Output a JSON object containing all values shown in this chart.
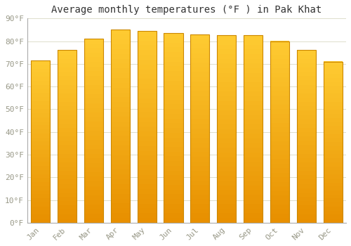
{
  "title": "Average monthly temperatures (°F ) in Pak Khat",
  "months": [
    "Jan",
    "Feb",
    "Mar",
    "Apr",
    "May",
    "Jun",
    "Jul",
    "Aug",
    "Sep",
    "Oct",
    "Nov",
    "Dec"
  ],
  "values": [
    71.5,
    76.0,
    81.0,
    85.0,
    84.5,
    83.5,
    83.0,
    82.5,
    82.5,
    80.0,
    76.0,
    71.0
  ],
  "bar_color_main": "#FFBB22",
  "bar_color_edge": "#CC8800",
  "bar_color_left_shadow": "#E89000",
  "bar_color_right_shadow": "#FFCC44",
  "ylim": [
    0,
    90
  ],
  "yticks": [
    0,
    10,
    20,
    30,
    40,
    50,
    60,
    70,
    80,
    90
  ],
  "ytick_labels": [
    "0°F",
    "10°F",
    "20°F",
    "30°F",
    "40°F",
    "50°F",
    "60°F",
    "70°F",
    "80°F",
    "90°F"
  ],
  "background_color": "#ffffff",
  "grid_color": "#ddddcc",
  "title_fontsize": 10,
  "tick_fontsize": 8,
  "tick_color": "#999988"
}
